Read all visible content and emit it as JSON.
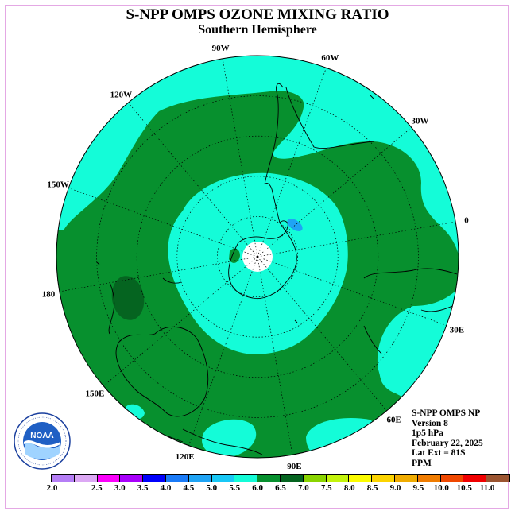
{
  "title": "S-NPP OMPS OZONE MIXING RATIO",
  "subtitle": "Southern Hemisphere",
  "map": {
    "projection": "south-polar-stereographic",
    "longitude_labels": [
      {
        "text": "90W",
        "lon": -90
      },
      {
        "text": "60W",
        "lon": -60
      },
      {
        "text": "30W",
        "lon": -30
      },
      {
        "text": "0",
        "lon": 0
      },
      {
        "text": "30E",
        "lon": 30
      },
      {
        "text": "60E",
        "lon": 60
      },
      {
        "text": "90E",
        "lon": 90
      },
      {
        "text": "120E",
        "lon": 120
      },
      {
        "text": "150E",
        "lon": 150
      },
      {
        "text": "180",
        "lon": 180
      },
      {
        "text": "150W",
        "lon": -150
      },
      {
        "text": "120W",
        "lon": -120
      }
    ],
    "colors": {
      "land_outline": "#000000",
      "contour_6_0_6_5": "#07902e",
      "contour_5_5_6_0": "#14fcd8",
      "contour_6_5_7_0": "#056420",
      "contour_4_5_5_0": "#1fa4f5",
      "no_data": "#ffffff"
    }
  },
  "info": {
    "line1": "S-NPP OMPS NP",
    "line2": "Version 8",
    "line3": "1p5 hPa",
    "line4": "February 22, 2025",
    "line5": "Lat Ext = 81S",
    "line6": "PPM"
  },
  "colorbar": {
    "colors": [
      "#b57ef6",
      "#dca8f4",
      "#fc00fc",
      "#a800fc",
      "#0000fc",
      "#1a7bf8",
      "#1fa4f5",
      "#18c8f6",
      "#14fcd8",
      "#07902e",
      "#056420",
      "#8ad400",
      "#c4f40c",
      "#fcfc00",
      "#fcd400",
      "#f0ac00",
      "#f07c00",
      "#f04800",
      "#f00000",
      "#9b5430"
    ],
    "ticks": [
      "2.0",
      "2.5",
      "3.0",
      "3.5",
      "4.0",
      "4.5",
      "5.0",
      "5.5",
      "6.0",
      "6.5",
      "7.0",
      "7.5",
      "8.0",
      "8.5",
      "9.0",
      "9.5",
      "10.0",
      "10.5",
      "11.0"
    ]
  },
  "logo": {
    "text": "NOAA",
    "ring_text": "NATIONAL OCEANIC AND ATMOSPHERIC ADMINISTRATION · U.S. DEPARTMENT OF COMMERCE"
  }
}
